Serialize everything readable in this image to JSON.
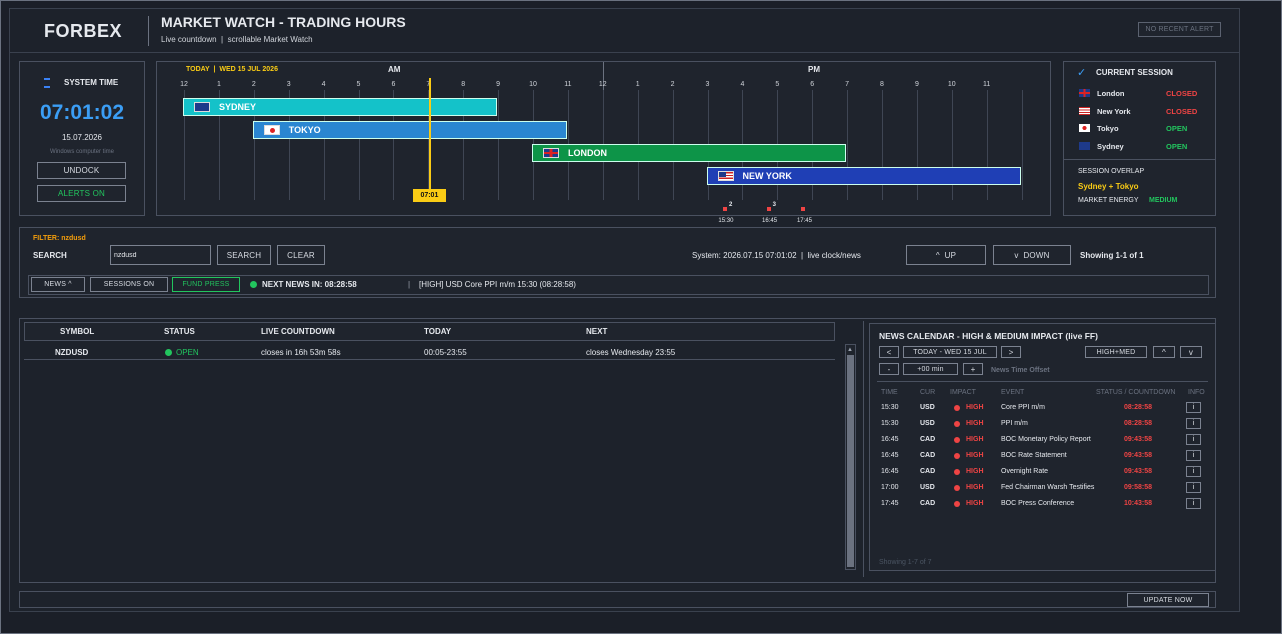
{
  "brand": "FORBEX",
  "header": {
    "title": "MARKET WATCH - TRADING HOURS",
    "subtitle": "Live countdown  |  scrollable Market Watch",
    "alert": "NO RECENT ALERT"
  },
  "system": {
    "label": "SYSTEM TIME",
    "time": "07:01:02",
    "date": "15.07.2026",
    "note": "Windows computer time",
    "undock": "UNDOCK",
    "alerts": "ALERTS ON"
  },
  "timeline": {
    "today": "TODAY  |  WED 15 JUL 2026",
    "am": "AM",
    "pm": "PM",
    "hours": [
      "12",
      "1",
      "2",
      "3",
      "4",
      "5",
      "6",
      "7",
      "8",
      "9",
      "10",
      "11",
      "12",
      "1",
      "2",
      "3",
      "4",
      "5",
      "6",
      "7",
      "8",
      "9",
      "10",
      "11"
    ],
    "sessions": [
      {
        "name": "SYDNEY",
        "start": 0,
        "end": 9,
        "color": "#14c2c9"
      },
      {
        "name": "TOKYO",
        "start": 2,
        "end": 11,
        "color": "#2a86d1"
      },
      {
        "name": "LONDON",
        "start": 10,
        "end": 19,
        "color": "#0d9448"
      },
      {
        "name": "NEW YORK",
        "start": 15,
        "end": 24,
        "color": "#1f3fb5"
      }
    ],
    "now_hour": 7.017,
    "now_label": "07:01",
    "markers": [
      {
        "time": "15:30",
        "count": "2"
      },
      {
        "time": "16:45",
        "count": "3"
      },
      {
        "time": "17:45",
        "count": ""
      }
    ]
  },
  "current_session": {
    "title": "CURRENT SESSION",
    "rows": [
      {
        "name": "London",
        "status": "CLOSED",
        "flag": "uk"
      },
      {
        "name": "New York",
        "status": "CLOSED",
        "flag": "us"
      },
      {
        "name": "Tokyo",
        "status": "OPEN",
        "flag": "jp"
      },
      {
        "name": "Sydney",
        "status": "OPEN",
        "flag": "au"
      }
    ],
    "overlap_label": "SESSION OVERLAP",
    "overlap": "Sydney + Tokyo",
    "energy_label": "MARKET ENERGY",
    "energy": "MEDIUM"
  },
  "filter": {
    "label": "FILTER: nzdusd",
    "search_label": "SEARCH",
    "value": "nzdusd",
    "search_btn": "SEARCH",
    "clear_btn": "CLEAR",
    "status": "System: 2026.07.15 07:01:02  |  live clock/news",
    "up": "^  UP",
    "down": "v  DOWN",
    "showing": "Showing 1-1 of 1"
  },
  "toolbar": {
    "news": "NEWS ^",
    "sessions": "SESSIONS ON",
    "fund": "FUND PRESS",
    "next_news": "NEXT NEWS IN: 08:28:58",
    "ticker": "[HIGH] USD Core PPI m/m 15:30 (08:28:58)"
  },
  "watch": {
    "columns": [
      "SYMBOL",
      "STATUS",
      "LIVE COUNTDOWN",
      "TODAY",
      "NEXT"
    ],
    "rows": [
      {
        "symbol": "NZDUSD",
        "status": "OPEN",
        "countdown": "closes in 16h 53m 58s",
        "today": "00:05-23:55",
        "next": "closes Wednesday 23:55"
      }
    ]
  },
  "news": {
    "title": "NEWS CALENDAR - HIGH & MEDIUM IMPACT (live FF)",
    "prev": "<",
    "date": "TODAY - WED 15 JUL",
    "next": ">",
    "filter": "HIGH+MED",
    "up": "^",
    "down": "v",
    "minus": "-",
    "offset": "+00 min",
    "plus": "+",
    "offset_label": "News Time Offset",
    "columns": [
      "TIME",
      "CUR",
      "IMPACT",
      "EVENT",
      "STATUS / COUNTDOWN",
      "INFO"
    ],
    "rows": [
      {
        "time": "15:30",
        "cur": "USD",
        "impact": "HIGH",
        "event": "Core PPI m/m",
        "countdown": "08:28:58"
      },
      {
        "time": "15:30",
        "cur": "USD",
        "impact": "HIGH",
        "event": "PPI m/m",
        "countdown": "08:28:58"
      },
      {
        "time": "16:45",
        "cur": "CAD",
        "impact": "HIGH",
        "event": "BOC Monetary Policy Report",
        "countdown": "09:43:58"
      },
      {
        "time": "16:45",
        "cur": "CAD",
        "impact": "HIGH",
        "event": "BOC Rate Statement",
        "countdown": "09:43:58"
      },
      {
        "time": "16:45",
        "cur": "CAD",
        "impact": "HIGH",
        "event": "Overnight Rate",
        "countdown": "09:43:58"
      },
      {
        "time": "17:00",
        "cur": "USD",
        "impact": "HIGH",
        "event": "Fed Chairman Warsh Testifies",
        "countdown": "09:58:58"
      },
      {
        "time": "17:45",
        "cur": "CAD",
        "impact": "HIGH",
        "event": "BOC Press Conference",
        "countdown": "10:43:58"
      }
    ],
    "info": "i",
    "showing": "Showing 1-7 of 7"
  },
  "footer": {
    "update": "UPDATE NOW"
  }
}
